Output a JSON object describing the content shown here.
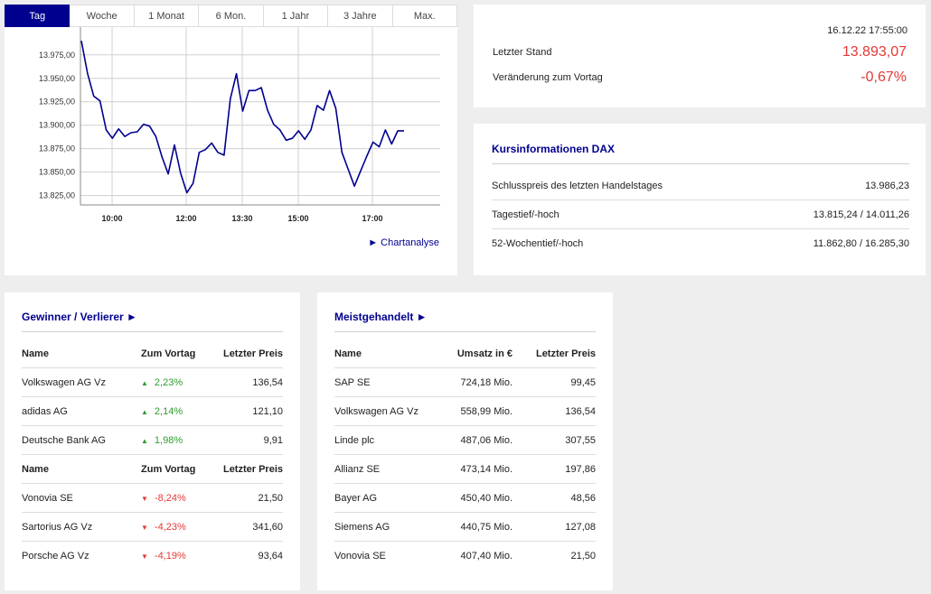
{
  "tabs": [
    "Tag",
    "Woche",
    "1 Monat",
    "6 Mon.",
    "1 Jahr",
    "3 Jahre",
    "Max."
  ],
  "active_tab": "Tag",
  "colors": {
    "accent": "#00008f",
    "positive": "#2e9b2e",
    "negative": "#e53935"
  },
  "chart_link": "► Chartanalyse",
  "chart_data": {
    "type": "line",
    "ylim": [
      13815,
      13995
    ],
    "yticks": [
      13825,
      13850,
      13875,
      13900,
      13925,
      13950,
      13975
    ],
    "ytick_labels": [
      "13.825,00",
      "13.850,00",
      "13.875,00",
      "13.900,00",
      "13.925,00",
      "13.950,00",
      "13.975,00"
    ],
    "xticks": [
      "10:00",
      "12:00",
      "13:30",
      "15:00",
      "17:00"
    ],
    "series": [
      {
        "color": "#00008f",
        "values": [
          13990,
          13955,
          13931,
          13926,
          13895,
          13886,
          13896,
          13888,
          13892,
          13893,
          13901,
          13899,
          13888,
          13866,
          13848,
          13879,
          13849,
          13828,
          13838,
          13871,
          13874,
          13881,
          13871,
          13868,
          13928,
          13955,
          13915,
          13937,
          13937,
          13940,
          13916,
          13901,
          13895,
          13884,
          13886,
          13894,
          13885,
          13895,
          13921,
          13916,
          13937,
          13918,
          13871,
          13853,
          13835,
          13851,
          13867,
          13882,
          13877,
          13895,
          13880,
          13894,
          13894
        ]
      }
    ]
  },
  "quote": {
    "timestamp": "16.12.22 17:55:00",
    "last_label": "Letzter Stand",
    "last_value": "13.893,07",
    "change_label": "Veränderung zum Vortag",
    "change_value": "-0,67%"
  },
  "info": {
    "title": "Kursinformationen DAX",
    "rows": [
      {
        "label": "Schlusspreis des letzten Handelstages",
        "value": "13.986,23"
      },
      {
        "label": "Tagestief/-hoch",
        "value": "13.815,24 / 14.011,26"
      },
      {
        "label": "52-Wochentief/-hoch",
        "value": "11.862,80 / 16.285,30"
      }
    ]
  },
  "gainers": {
    "title": "Gewinner / Verlierer ►",
    "header": {
      "name": "Name",
      "change": "Zum Vortag",
      "price": "Letzter Preis"
    },
    "winners": [
      {
        "name": "Volkswagen AG Vz",
        "change": "2,23%",
        "price": "136,54"
      },
      {
        "name": "adidas AG",
        "change": "2,14%",
        "price": "121,10"
      },
      {
        "name": "Deutsche Bank AG",
        "change": "1,98%",
        "price": "9,91"
      }
    ],
    "losers": [
      {
        "name": "Vonovia SE",
        "change": "-8,24%",
        "price": "21,50"
      },
      {
        "name": "Sartorius AG Vz",
        "change": "-4,23%",
        "price": "341,60"
      },
      {
        "name": "Porsche AG Vz",
        "change": "-4,19%",
        "price": "93,64"
      }
    ]
  },
  "active": {
    "title": "Meistgehandelt ►",
    "header": {
      "name": "Name",
      "volume": "Umsatz in €",
      "price": "Letzter Preis"
    },
    "rows": [
      {
        "name": "SAP SE",
        "volume": "724,18 Mio.",
        "price": "99,45"
      },
      {
        "name": "Volkswagen AG Vz",
        "volume": "558,99 Mio.",
        "price": "136,54"
      },
      {
        "name": "Linde plc",
        "volume": "487,06 Mio.",
        "price": "307,55"
      },
      {
        "name": "Allianz SE",
        "volume": "473,14 Mio.",
        "price": "197,86"
      },
      {
        "name": "Bayer AG",
        "volume": "450,40 Mio.",
        "price": "48,56"
      },
      {
        "name": "Siemens AG",
        "volume": "440,75 Mio.",
        "price": "127,08"
      },
      {
        "name": "Vonovia SE",
        "volume": "407,40 Mio.",
        "price": "21,50"
      }
    ]
  }
}
